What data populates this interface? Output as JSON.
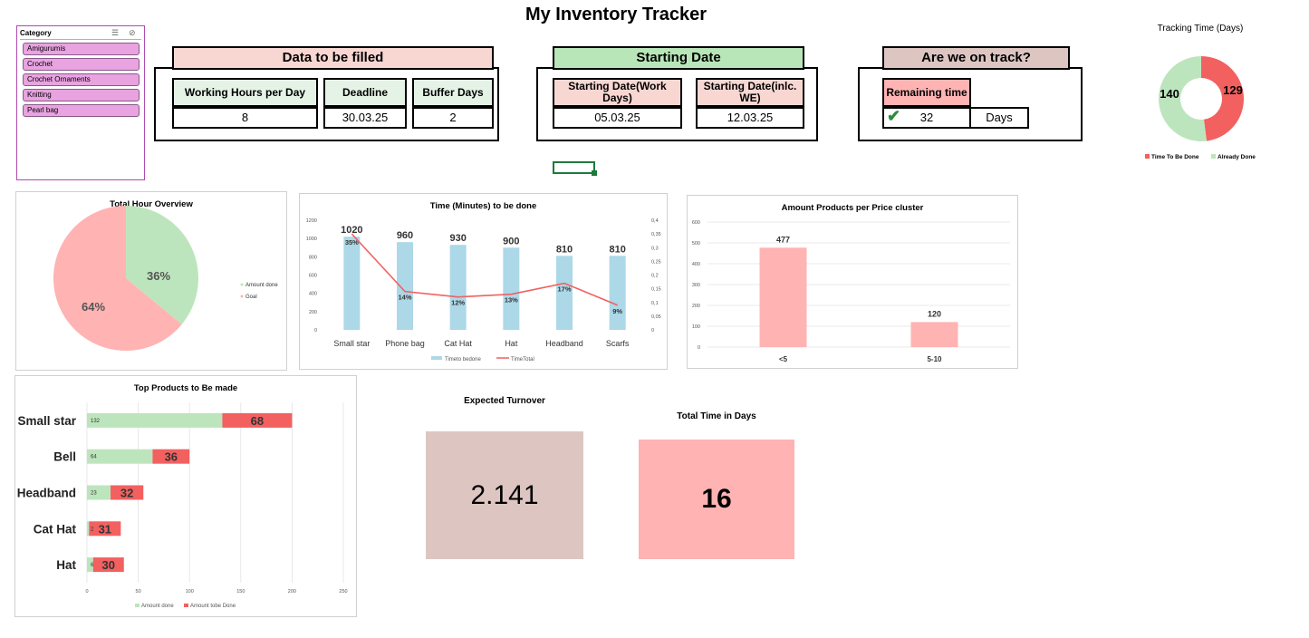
{
  "title": "My Inventory Tracker",
  "slicer": {
    "header": "Category",
    "items": [
      "Amigurumis",
      "Crochet",
      "Crochet Ornaments",
      "Knitting",
      "Pearl bag"
    ]
  },
  "data_form": {
    "header": "Data to be filled",
    "fields": [
      {
        "label": "Working Hours per Day",
        "value": "8"
      },
      {
        "label": "Deadline",
        "value": "30.03.25"
      },
      {
        "label": "Buffer Days",
        "value": "2"
      }
    ]
  },
  "start_form": {
    "header": "Starting Date",
    "fields": [
      {
        "label": "Starting Date(Work Days)",
        "value": "05.03.25"
      },
      {
        "label": "Starting Date(inlc. WE)",
        "value": "12.03.25"
      }
    ]
  },
  "track_form": {
    "header": "Are we on track?",
    "label": "Remaining time",
    "value": "32",
    "unit": "Days"
  },
  "colors": {
    "pink": "#f8d7d3",
    "green": "#b8e6b8",
    "mauve": "#ddc6c2",
    "salmon_bar": "#ffb3b3",
    "red": "#f26060",
    "light_green": "#bde5bd",
    "light_blue": "#acd8e8",
    "kpi_brown": "#ddc6c2",
    "kpi_pink": "#ffb3b3"
  },
  "chart_data": [
    {
      "type": "pie",
      "title": "Tracking Time (Days)",
      "donut": true,
      "slices": [
        {
          "name": "Time To Be Done",
          "value": 129
        },
        {
          "name": "Already Done",
          "value": 140
        }
      ],
      "labels": [
        "129",
        "140"
      ]
    },
    {
      "type": "pie",
      "title": "Total Hour Overview",
      "slices": [
        {
          "name": "Amount done",
          "value": 36
        },
        {
          "name": "Goal",
          "value": 64
        }
      ],
      "labels": [
        "36%",
        "64%"
      ]
    },
    {
      "type": "bar",
      "title": "Time (Minutes) to be done",
      "categories": [
        "Small star",
        "Phone bag",
        "Cat Hat",
        "Hat",
        "Headband",
        "Scarfs"
      ],
      "series": [
        {
          "name": "Timeto bedone",
          "values": [
            1020,
            960,
            930,
            900,
            810,
            810
          ],
          "labels": [
            "1020",
            "960",
            "930",
            "900",
            "810",
            "810"
          ]
        },
        {
          "name": "TimeTotal",
          "values": [
            0.35,
            0.14,
            0.12,
            0.13,
            0.17,
            0.09
          ],
          "labels": [
            "35%",
            "14%",
            "12%",
            "13%",
            "17%",
            "9%"
          ]
        }
      ],
      "y_ticks": [
        "0",
        "200",
        "400",
        "600",
        "800",
        "1000",
        "1200"
      ],
      "y2_ticks": [
        "0",
        "0,05",
        "0,1",
        "0,15",
        "0,2",
        "0,25",
        "0,3",
        "0,35",
        "0,4"
      ],
      "ylim": [
        0,
        1200
      ],
      "y2lim": [
        0,
        0.4
      ]
    },
    {
      "type": "bar",
      "title": "Amount Products per Price cluster",
      "categories": [
        "<5",
        "5-10"
      ],
      "values": [
        477,
        120
      ],
      "y_ticks": [
        "0",
        "100",
        "200",
        "300",
        "400",
        "500",
        "600"
      ],
      "ylim": [
        0,
        600
      ]
    },
    {
      "type": "bar",
      "orientation": "horizontal",
      "stacked": true,
      "title": "Top Products to Be made",
      "categories": [
        "Small star",
        "Bell",
        "Headband",
        "Cat Hat",
        "Hat"
      ],
      "series": [
        {
          "name": "Amount done",
          "values": [
            132,
            64,
            23,
            2,
            6
          ]
        },
        {
          "name": "Amount tobe Done",
          "values": [
            68,
            36,
            32,
            31,
            30
          ]
        }
      ],
      "x_ticks": [
        "0",
        "50",
        "100",
        "150",
        "200",
        "250"
      ],
      "xlim": [
        0,
        250
      ]
    }
  ],
  "kpis": [
    {
      "label": "Expected Turnover",
      "value": "2.141"
    },
    {
      "label": "Total Time in Days",
      "value": "16"
    }
  ]
}
